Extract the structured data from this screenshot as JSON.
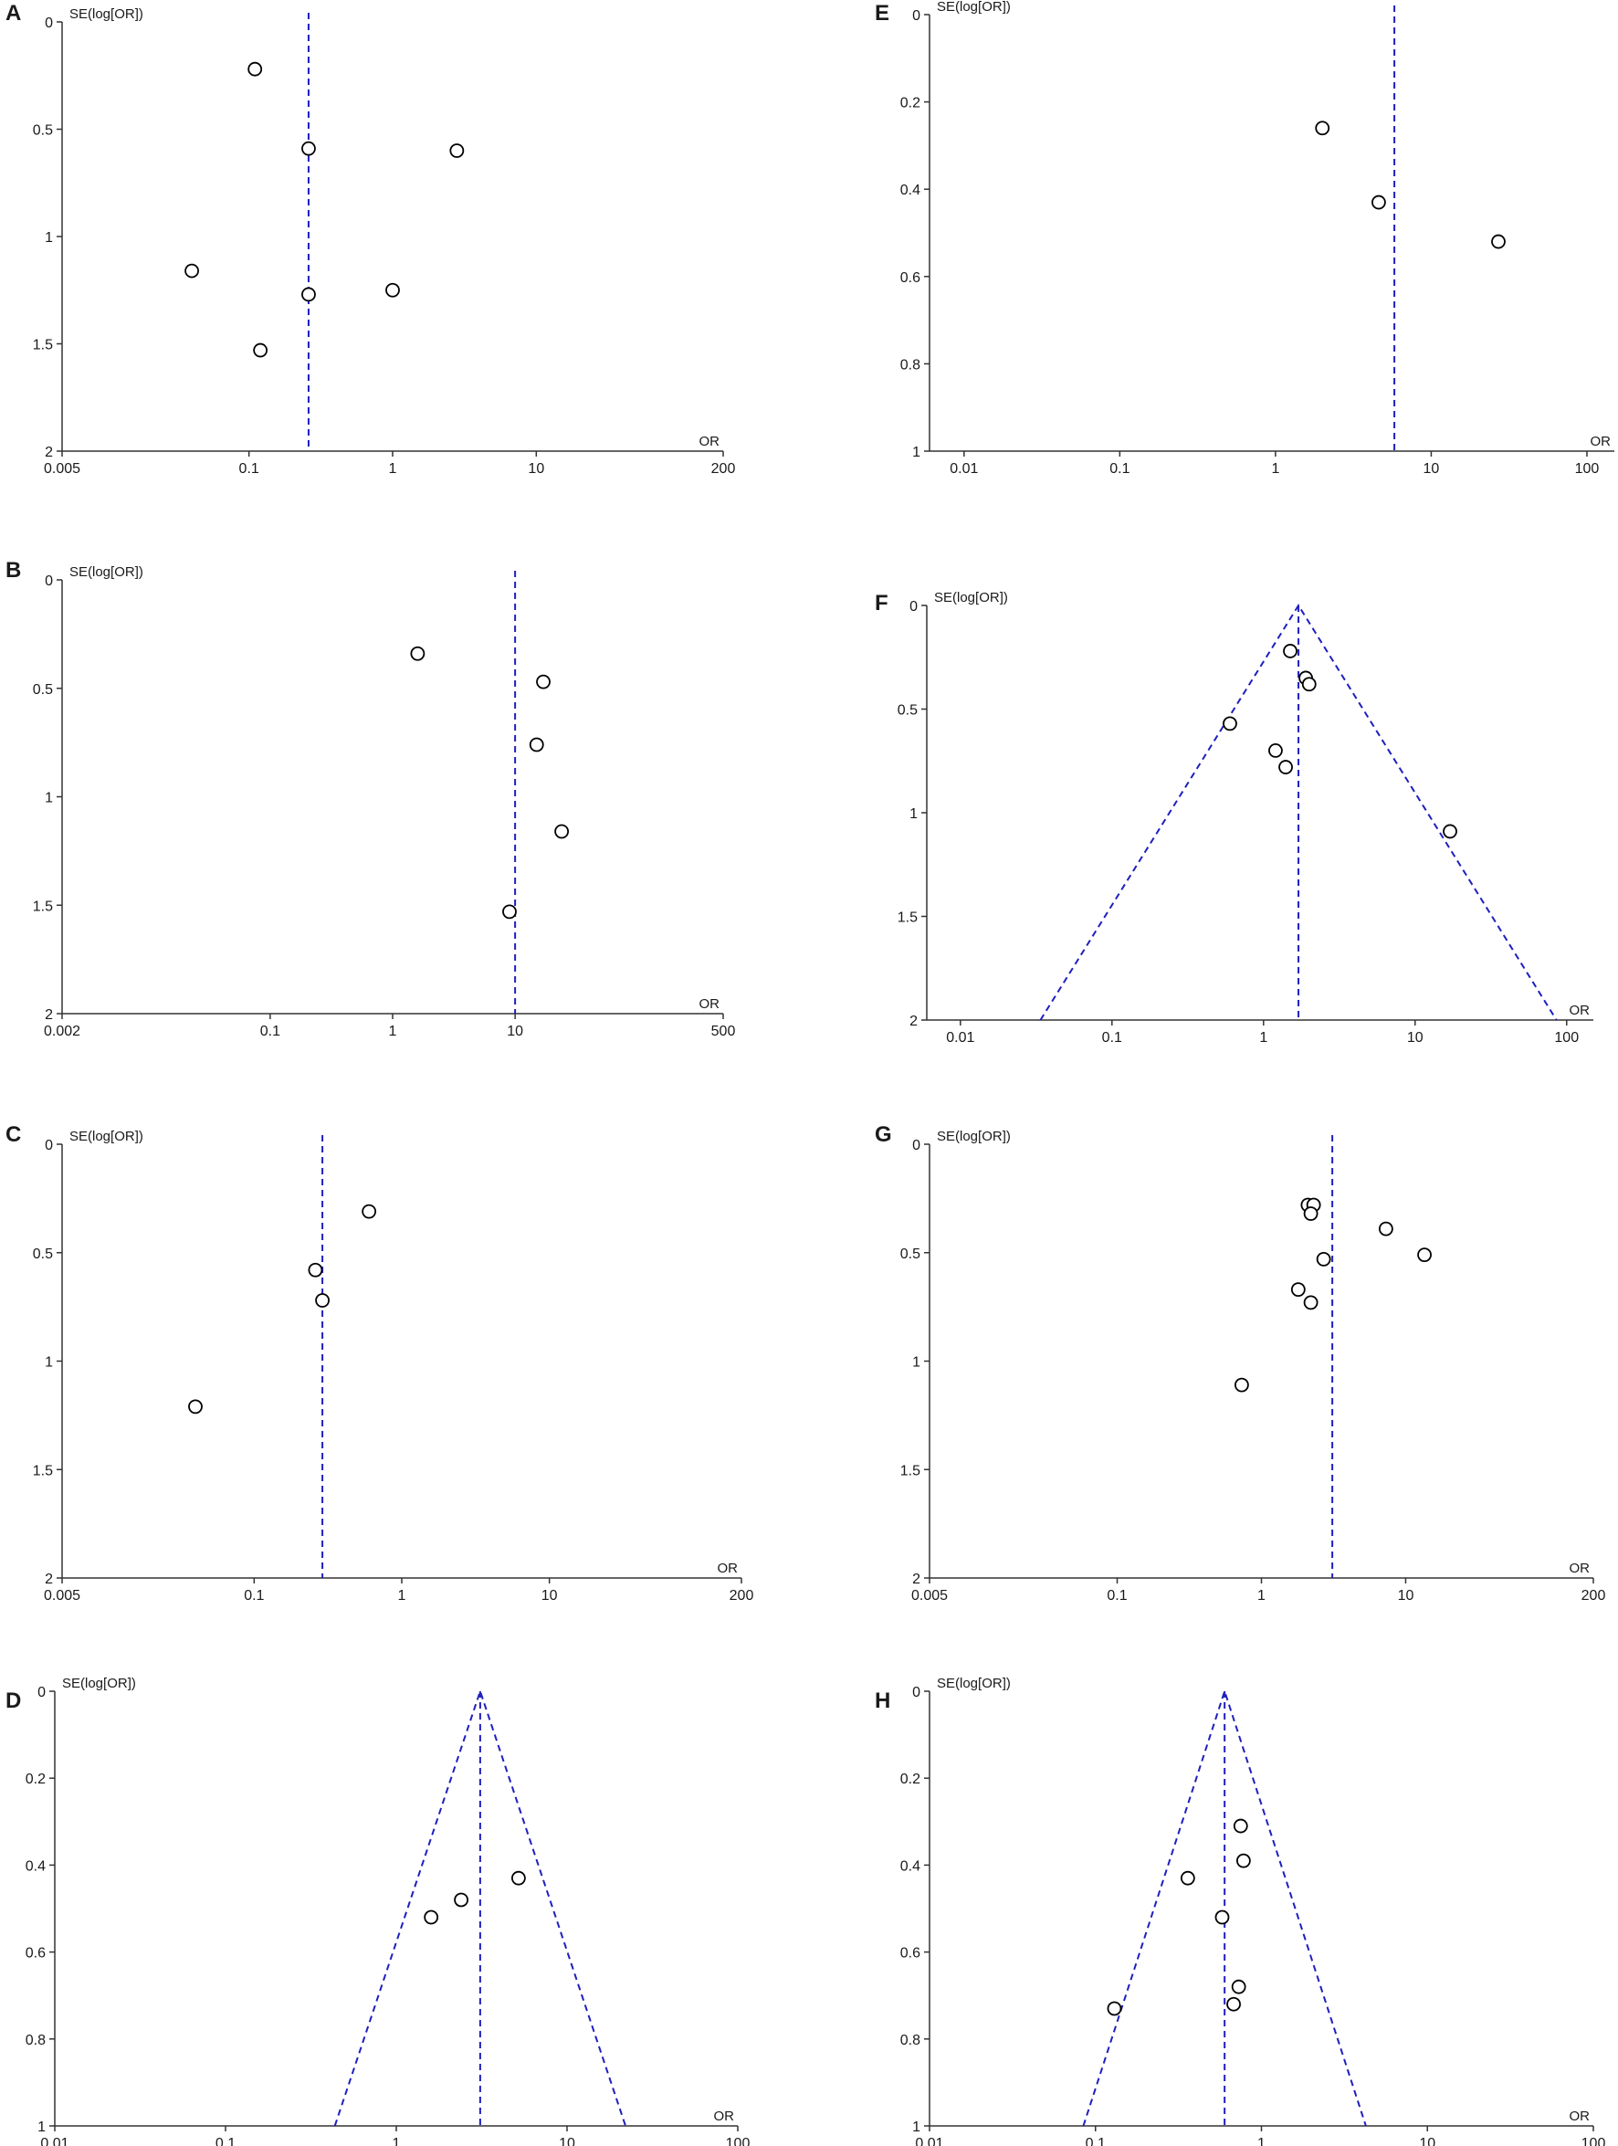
{
  "chart_data": [
    {
      "panel": "A",
      "type": "scatter",
      "xlabel": "OR",
      "ylabel": "SE(log[OR])",
      "x_scale": "log",
      "xlim": [
        0.005,
        200
      ],
      "ylim": [
        2,
        0
      ],
      "x_ticks": [
        0.005,
        0.1,
        1,
        10,
        200
      ],
      "x_tick_labels": [
        "0.005",
        "0.1",
        "1",
        "10",
        "200"
      ],
      "y_ticks": [
        0,
        0.5,
        1,
        1.5,
        2
      ],
      "y_tick_labels": [
        "0",
        "0.5",
        "1",
        "1.5",
        "2"
      ],
      "pooled_or": 0.26,
      "funnel": false,
      "points": [
        {
          "x": 0.11,
          "y": 0.22
        },
        {
          "x": 0.26,
          "y": 0.59
        },
        {
          "x": 2.8,
          "y": 0.6
        },
        {
          "x": 0.04,
          "y": 1.16
        },
        {
          "x": 0.26,
          "y": 1.27
        },
        {
          "x": 1.0,
          "y": 1.25
        },
        {
          "x": 0.12,
          "y": 1.53
        }
      ]
    },
    {
      "panel": "B",
      "type": "scatter",
      "xlabel": "OR",
      "ylabel": "SE(log[OR])",
      "x_scale": "log",
      "xlim": [
        0.002,
        500
      ],
      "ylim": [
        2,
        0
      ],
      "x_ticks": [
        0.002,
        0.1,
        1,
        10,
        500
      ],
      "x_tick_labels": [
        "0.002",
        "0.1",
        "1",
        "10",
        "500"
      ],
      "y_ticks": [
        0,
        0.5,
        1,
        1.5,
        2
      ],
      "y_tick_labels": [
        "0",
        "0.5",
        "1",
        "1.5",
        "2"
      ],
      "pooled_or": 10,
      "funnel": false,
      "points": [
        {
          "x": 1.6,
          "y": 0.34
        },
        {
          "x": 17,
          "y": 0.47
        },
        {
          "x": 15,
          "y": 0.76
        },
        {
          "x": 24,
          "y": 1.16
        },
        {
          "x": 9,
          "y": 1.53
        }
      ]
    },
    {
      "panel": "C",
      "type": "scatter",
      "xlabel": "OR",
      "ylabel": "SE(log[OR])",
      "x_scale": "log",
      "xlim": [
        0.005,
        200
      ],
      "ylim": [
        2,
        0
      ],
      "x_ticks": [
        0.005,
        0.1,
        1,
        10,
        200
      ],
      "x_tick_labels": [
        "0.005",
        "0.1",
        "1",
        "10",
        "200"
      ],
      "y_ticks": [
        0,
        0.5,
        1,
        1.5,
        2
      ],
      "y_tick_labels": [
        "0",
        "0.5",
        "1",
        "1.5",
        "2"
      ],
      "pooled_or": 0.29,
      "funnel": false,
      "points": [
        {
          "x": 0.6,
          "y": 0.31
        },
        {
          "x": 0.26,
          "y": 0.58
        },
        {
          "x": 0.29,
          "y": 0.72
        },
        {
          "x": 0.04,
          "y": 1.21
        }
      ]
    },
    {
      "panel": "D",
      "type": "scatter",
      "xlabel": "OR",
      "ylabel": "SE(log[OR])",
      "x_scale": "log",
      "xlim": [
        0.01,
        100
      ],
      "ylim": [
        1,
        0
      ],
      "x_ticks": [
        0.01,
        0.1,
        1,
        10,
        100
      ],
      "x_tick_labels": [
        "0.01",
        "0.1",
        "1",
        "10",
        "100"
      ],
      "y_ticks": [
        0,
        0.2,
        0.4,
        0.6,
        0.8,
        1
      ],
      "y_tick_labels": [
        "0",
        "0.2",
        "0.4",
        "0.6",
        "0.8",
        "1"
      ],
      "pooled_or": 3.1,
      "funnel": true,
      "points": [
        {
          "x": 1.6,
          "y": 0.52
        },
        {
          "x": 2.4,
          "y": 0.48
        },
        {
          "x": 5.2,
          "y": 0.43
        }
      ]
    },
    {
      "panel": "E",
      "type": "scatter",
      "xlabel": "OR",
      "ylabel": "SE(log[OR])",
      "x_scale": "log",
      "xlim": [
        0.006,
        150
      ],
      "ylim": [
        1,
        0
      ],
      "x_ticks": [
        0.01,
        0.1,
        1,
        10,
        100
      ],
      "x_tick_labels": [
        "0.01",
        "0.1",
        "1",
        "10",
        "100"
      ],
      "y_ticks": [
        0,
        0.2,
        0.4,
        0.6,
        0.8,
        1
      ],
      "y_tick_labels": [
        "0",
        "0.2",
        "0.4",
        "0.6",
        "0.8",
        "1"
      ],
      "pooled_or": 5.8,
      "funnel": false,
      "points": [
        {
          "x": 2.0,
          "y": 0.26
        },
        {
          "x": 4.6,
          "y": 0.43
        },
        {
          "x": 27,
          "y": 0.52
        }
      ]
    },
    {
      "panel": "F",
      "type": "scatter",
      "xlabel": "OR",
      "ylabel": "SE(log[OR])",
      "x_scale": "log",
      "xlim": [
        0.006,
        150
      ],
      "ylim": [
        2,
        0
      ],
      "x_ticks": [
        0.01,
        0.1,
        1,
        10,
        100
      ],
      "x_tick_labels": [
        "0.01",
        "0.1",
        "1",
        "10",
        "100"
      ],
      "y_ticks": [
        0,
        0.5,
        1,
        1.5,
        2
      ],
      "y_tick_labels": [
        "0",
        "0.5",
        "1",
        "1.5",
        "2"
      ],
      "pooled_or": 1.7,
      "funnel": true,
      "points": [
        {
          "x": 1.5,
          "y": 0.22
        },
        {
          "x": 1.9,
          "y": 0.35
        },
        {
          "x": 2.0,
          "y": 0.38
        },
        {
          "x": 0.6,
          "y": 0.57
        },
        {
          "x": 1.2,
          "y": 0.7
        },
        {
          "x": 1.4,
          "y": 0.78
        },
        {
          "x": 17,
          "y": 1.09
        }
      ]
    },
    {
      "panel": "G",
      "type": "scatter",
      "xlabel": "OR",
      "ylabel": "SE(log[OR])",
      "x_scale": "log",
      "xlim": [
        0.005,
        200
      ],
      "ylim": [
        2,
        0
      ],
      "x_ticks": [
        0.005,
        0.1,
        1,
        10,
        200
      ],
      "x_tick_labels": [
        "0.005",
        "0.1",
        "1",
        "10",
        "200"
      ],
      "y_ticks": [
        0,
        0.5,
        1,
        1.5,
        2
      ],
      "y_tick_labels": [
        "0",
        "0.5",
        "1",
        "1.5",
        "2"
      ],
      "pooled_or": 3.1,
      "funnel": false,
      "points": [
        {
          "x": 2.1,
          "y": 0.28
        },
        {
          "x": 2.3,
          "y": 0.28
        },
        {
          "x": 2.2,
          "y": 0.32
        },
        {
          "x": 7.3,
          "y": 0.39
        },
        {
          "x": 2.7,
          "y": 0.53
        },
        {
          "x": 13.5,
          "y": 0.51
        },
        {
          "x": 1.8,
          "y": 0.67
        },
        {
          "x": 2.2,
          "y": 0.73
        },
        {
          "x": 0.73,
          "y": 1.11
        }
      ]
    },
    {
      "panel": "H",
      "type": "scatter",
      "xlabel": "OR",
      "ylabel": "SE(log[OR])",
      "x_scale": "log",
      "xlim": [
        0.01,
        100
      ],
      "ylim": [
        1,
        0
      ],
      "x_ticks": [
        0.01,
        0.1,
        1,
        10,
        100
      ],
      "x_tick_labels": [
        "0.01",
        "0.1",
        "1",
        "10",
        "100"
      ],
      "y_ticks": [
        0,
        0.2,
        0.4,
        0.6,
        0.8,
        1
      ],
      "y_tick_labels": [
        "0",
        "0.2",
        "0.4",
        "0.6",
        "0.8",
        "1"
      ],
      "pooled_or": 0.6,
      "funnel": true,
      "points": [
        {
          "x": 0.75,
          "y": 0.31
        },
        {
          "x": 0.78,
          "y": 0.39
        },
        {
          "x": 0.36,
          "y": 0.43
        },
        {
          "x": 0.58,
          "y": 0.52
        },
        {
          "x": 0.73,
          "y": 0.68
        },
        {
          "x": 0.68,
          "y": 0.72
        },
        {
          "x": 0.13,
          "y": 0.73
        }
      ]
    }
  ]
}
